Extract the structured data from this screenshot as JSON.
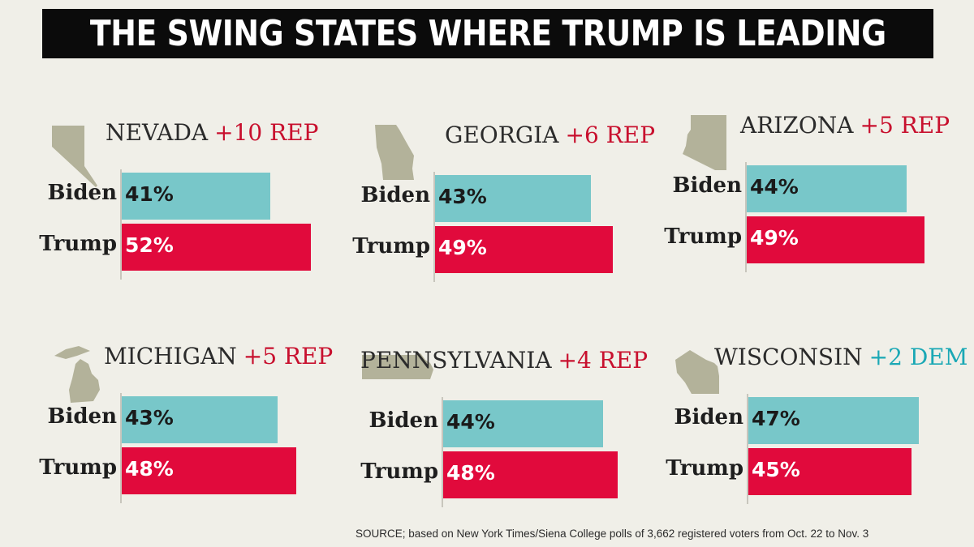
{
  "title": "THE SWING STATES WHERE TRUMP IS LEADING",
  "source": "SOURCE; based on New York Times/Siena College polls of 3,662 registered voters from Oct. 22 to Nov. 3",
  "colors": {
    "background": "#f0efe8",
    "banner": "#0b0b0b",
    "biden": "#78c7c9",
    "trump": "#e10a3c",
    "rep_text": "#c8102e",
    "dem_text": "#1aa8b5",
    "map": "#b3b29a"
  },
  "chart_data": [
    {
      "type": "bar",
      "orientation": "horizontal",
      "title": "NEVADA",
      "margin": "+10 REP",
      "margin_party": "rep",
      "map_icon": "nevada-map-icon",
      "categories": [
        "Biden",
        "Trump"
      ],
      "values": [
        41,
        52
      ],
      "labels": [
        "41%",
        "52%"
      ],
      "xlim": [
        0,
        55
      ]
    },
    {
      "type": "bar",
      "orientation": "horizontal",
      "title": "GEORGIA",
      "margin": "+6 REP",
      "margin_party": "rep",
      "map_icon": "georgia-map-icon",
      "categories": [
        "Biden",
        "Trump"
      ],
      "values": [
        43,
        49
      ],
      "labels": [
        "43%",
        "49%"
      ],
      "xlim": [
        0,
        55
      ]
    },
    {
      "type": "bar",
      "orientation": "horizontal",
      "title": "ARIZONA",
      "margin": "+5 REP",
      "margin_party": "rep",
      "map_icon": "arizona-map-icon",
      "categories": [
        "Biden",
        "Trump"
      ],
      "values": [
        44,
        49
      ],
      "labels": [
        "44%",
        "49%"
      ],
      "xlim": [
        0,
        55
      ]
    },
    {
      "type": "bar",
      "orientation": "horizontal",
      "title": "MICHIGAN",
      "margin": "+5 REP",
      "margin_party": "rep",
      "map_icon": "michigan-map-icon",
      "categories": [
        "Biden",
        "Trump"
      ],
      "values": [
        43,
        48
      ],
      "labels": [
        "43%",
        "48%"
      ],
      "xlim": [
        0,
        55
      ]
    },
    {
      "type": "bar",
      "orientation": "horizontal",
      "title": "PENNSYLVANIA",
      "margin": "+4 REP",
      "margin_party": "rep",
      "map_icon": "pennsylvania-map-icon",
      "categories": [
        "Biden",
        "Trump"
      ],
      "values": [
        44,
        48
      ],
      "labels": [
        "44%",
        "48%"
      ],
      "xlim": [
        0,
        55
      ]
    },
    {
      "type": "bar",
      "orientation": "horizontal",
      "title": "WISCONSIN",
      "margin": "+2 DEM",
      "margin_party": "dem",
      "map_icon": "wisconsin-map-icon",
      "categories": [
        "Biden",
        "Trump"
      ],
      "values": [
        47,
        45
      ],
      "labels": [
        "47%",
        "45%"
      ],
      "xlim": [
        0,
        55
      ]
    }
  ]
}
